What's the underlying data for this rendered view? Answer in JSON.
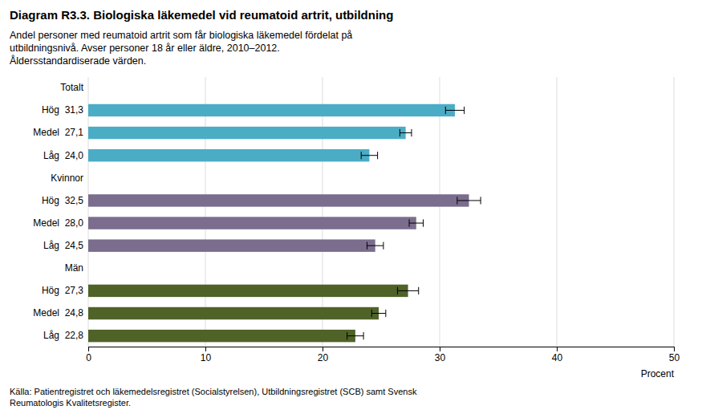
{
  "chart_data": {
    "type": "bar",
    "orientation": "horizontal",
    "title": "Diagram R3.3. Biologiska läkemedel vid reumatoid artrit, utbildning",
    "subtitle": [
      "Andel personer med reumatoid artrit som får biologiska läkemedel fördelat på",
      "utbildningsnivå. Avser personer 18 år eller äldre, 2010–2012.",
      "Åldersstandardiserade värden."
    ],
    "footer": [
      "Källa: Patientregistret och läkemedelsregistret (Socialstyrelsen), Utbildningsregistret (SCB) samt Svensk",
      "Reumatologis Kvalitetsregister."
    ],
    "xlabel": "Procent",
    "categories": [
      "Totalt",
      "Hög  31,3",
      "Medel  27,1",
      "Låg  24,0",
      "Kvinnor",
      "Hög  32,5",
      "Medel  28,0",
      "Låg  24,5",
      "Män",
      "Hög  27,3",
      "Medel  24,8",
      "Låg  22,8"
    ],
    "values": [
      null,
      31.3,
      27.1,
      24.0,
      null,
      32.5,
      28.0,
      24.5,
      null,
      27.3,
      24.8,
      22.8
    ],
    "errors": [
      null,
      0.8,
      0.5,
      0.7,
      null,
      1.0,
      0.6,
      0.7,
      null,
      0.9,
      0.6,
      0.7
    ],
    "colors": [
      null,
      "#4bacc6",
      "#4bacc6",
      "#4bacc6",
      null,
      "#7b6d8e",
      "#7b6d8e",
      "#7b6d8e",
      null,
      "#4f6228",
      "#4f6228",
      "#4f6228"
    ],
    "xlim": [
      0,
      50
    ],
    "xticks": [
      0,
      10,
      20,
      30,
      40,
      50
    ],
    "grid": true
  }
}
